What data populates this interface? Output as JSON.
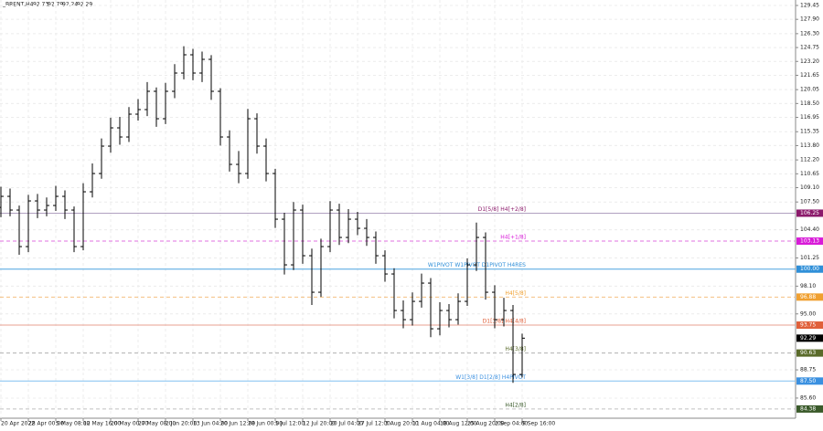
{
  "chart_data": {
    "type": "ohlc",
    "title": "_BRENT,H4",
    "quote": [
      "92.73",
      "92.79",
      "92.24",
      "92.29"
    ],
    "categories": [
      "20 Apr 2022",
      null,
      null,
      "28 Apr 00:00",
      null,
      null,
      "5 May 08:00",
      null,
      null,
      "12 May 16:00",
      null,
      null,
      "20 May 00:00",
      null,
      null,
      "27 May 08:00",
      null,
      null,
      "2 Jun 20:00",
      null,
      null,
      "13 Jun 04:00",
      null,
      null,
      "20 Jun 12:00",
      null,
      null,
      "28 Jun 00:00",
      null,
      null,
      "5 Jul 12:00",
      null,
      null,
      "12 Jul 20:00",
      null,
      null,
      "20 Jul 04:00",
      null,
      null,
      "27 Jul 12:00",
      null,
      null,
      "3 Aug 20:00",
      null,
      null,
      "11 Aug 04:00",
      null,
      null,
      "18 Aug 12:00",
      null,
      null,
      "25 Aug 20:00",
      null,
      null,
      "2 Sep 04:00",
      null,
      null,
      "9 Sep 16:00"
    ],
    "open": [
      106.9,
      108.13,
      106.6,
      102.52,
      107.62,
      106.6,
      107.11,
      108.13,
      106.6,
      102.52,
      108.64,
      110.68,
      113.74,
      115.78,
      114.76,
      117.31,
      117.82,
      119.86,
      116.8,
      119.86,
      121.9,
      123.94,
      121.9,
      123.43,
      119.86,
      114.76,
      111.7,
      110.68,
      116.8,
      113.74,
      110.68,
      105.58,
      100.48,
      106.6,
      101.5,
      97.42,
      102.52,
      106.6,
      103.54,
      105.58,
      104.56,
      103.54,
      101.5,
      99.46,
      95.38,
      94.36,
      96.4,
      98.44,
      93.34,
      95.38,
      94.36,
      96.4,
      100.48,
      103.54,
      97.42,
      94.36,
      95.38,
      88.24
    ],
    "high": [
      109.2,
      109.0,
      107.1,
      108.3,
      108.4,
      108.0,
      109.3,
      108.8,
      107.0,
      109.6,
      111.8,
      114.6,
      116.9,
      117.0,
      118.1,
      119.0,
      120.9,
      120.3,
      120.8,
      122.9,
      124.9,
      124.6,
      124.3,
      123.9,
      120.2,
      115.5,
      113.2,
      117.9,
      117.4,
      114.6,
      111.2,
      106.3,
      107.5,
      107.2,
      102.3,
      103.4,
      107.6,
      107.3,
      106.7,
      106.4,
      105.6,
      104.2,
      102.1,
      100.1,
      96.5,
      97.4,
      99.5,
      99.0,
      96.3,
      96.1,
      97.3,
      101.2,
      105.2,
      104.1,
      98.2,
      96.8,
      96.0,
      92.8
    ],
    "low": [
      105.8,
      105.9,
      101.6,
      101.9,
      105.7,
      105.9,
      106.5,
      105.6,
      101.9,
      102.1,
      108.0,
      110.1,
      113.0,
      113.9,
      114.2,
      116.6,
      117.1,
      115.9,
      116.2,
      119.1,
      121.2,
      121.1,
      120.9,
      118.9,
      113.8,
      110.9,
      109.6,
      110.1,
      112.9,
      109.8,
      104.6,
      99.4,
      99.9,
      100.6,
      96.0,
      96.9,
      101.9,
      102.7,
      102.9,
      103.8,
      102.6,
      100.6,
      98.6,
      94.5,
      93.4,
      93.7,
      95.7,
      92.4,
      92.6,
      93.5,
      93.8,
      95.9,
      99.8,
      96.6,
      93.4,
      93.6,
      87.3,
      87.9
    ],
    "close": [
      108.13,
      106.6,
      102.52,
      107.62,
      106.6,
      107.11,
      108.13,
      106.6,
      102.52,
      108.64,
      110.68,
      113.74,
      115.78,
      114.76,
      117.31,
      117.82,
      119.86,
      116.8,
      119.86,
      121.9,
      123.94,
      121.9,
      123.43,
      119.86,
      114.76,
      111.7,
      110.68,
      116.8,
      113.74,
      110.68,
      105.58,
      100.48,
      106.6,
      101.5,
      97.42,
      102.52,
      106.6,
      103.54,
      105.58,
      104.56,
      103.54,
      101.5,
      99.46,
      95.38,
      94.36,
      96.4,
      98.44,
      93.34,
      95.38,
      94.36,
      96.4,
      100.48,
      103.54,
      97.42,
      94.36,
      95.38,
      88.24,
      92.29
    ],
    "color": "#000000",
    "ylim": [
      83.35,
      130.06
    ],
    "yticks": [
      {
        "value": 129.45,
        "label": "129.45"
      },
      {
        "value": 127.9,
        "label": "127.90"
      },
      {
        "value": 126.3,
        "label": "126.30"
      },
      {
        "value": 124.75,
        "label": "124.75"
      },
      {
        "value": 123.2,
        "label": "123.20"
      },
      {
        "value": 121.65,
        "label": "121.65"
      },
      {
        "value": 120.05,
        "label": "120.05"
      },
      {
        "value": 118.5,
        "label": "118.50"
      },
      {
        "value": 116.95,
        "label": "116.95"
      },
      {
        "value": 115.35,
        "label": "115.35"
      },
      {
        "value": 113.8,
        "label": "113.80"
      },
      {
        "value": 112.2,
        "label": "112.20"
      },
      {
        "value": 110.65,
        "label": "110.65"
      },
      {
        "value": 109.1,
        "label": "109.10"
      },
      {
        "value": 107.5,
        "label": "107.50"
      },
      {
        "value": 104.4,
        "label": "104.40"
      },
      {
        "value": 101.25,
        "label": "101.25"
      },
      {
        "value": 98.1,
        "label": "98.10"
      },
      {
        "value": 95,
        "label": "95.00"
      },
      {
        "value": 88.75,
        "label": "88.75"
      },
      {
        "value": 85.6,
        "label": "85.60"
      }
    ],
    "grid": true,
    "levels": [
      {
        "name": "D1[5/8] H4[+2/8]",
        "value": 106.25,
        "value_label": "106.25",
        "color": "#8b1a6b",
        "line": "#b0a0c0",
        "dash": false
      },
      {
        "name": "H4[+1/8]",
        "value": 103.13,
        "value_label": "103.13",
        "color": "#d81bd8",
        "line": "#e070e0",
        "dash": true
      },
      {
        "name": "W1PIVOT W1PIVOT D1PIVOT H4RES",
        "value": 100,
        "value_label": "100.00",
        "color": "#2f8fd8",
        "line": "#4aa3e0",
        "dash": false
      },
      {
        "name": "H4[5/8]",
        "value": 96.88,
        "value_label": "96.88",
        "color": "#f0a030",
        "line": "#f5c080",
        "dash": true
      },
      {
        "name": "D1[3/8] H4[4/8]",
        "value": 93.75,
        "value_label": "93.75",
        "color": "#e0603a",
        "line": "#e8a090",
        "dash": false
      },
      {
        "name": "H4[3/8]",
        "value": 90.63,
        "value_label": "90.63",
        "color": "#5a6b2a",
        "line": "#b0b0b0",
        "dash": true
      },
      {
        "name": "W1[3/8] D1[2/8] H4PIVOT",
        "value": 87.5,
        "value_label": "87.50",
        "color": "#3a90e0",
        "line": "#80c0f0",
        "dash": false
      },
      {
        "name": "H4[2/8]",
        "value": 84.38,
        "value_label": "84.38",
        "color": "#3a5a2a",
        "line": "#c0c0c0",
        "dash": true
      }
    ],
    "last_price": {
      "value": 92.29,
      "label": "92.29",
      "color": "#000000"
    }
  }
}
